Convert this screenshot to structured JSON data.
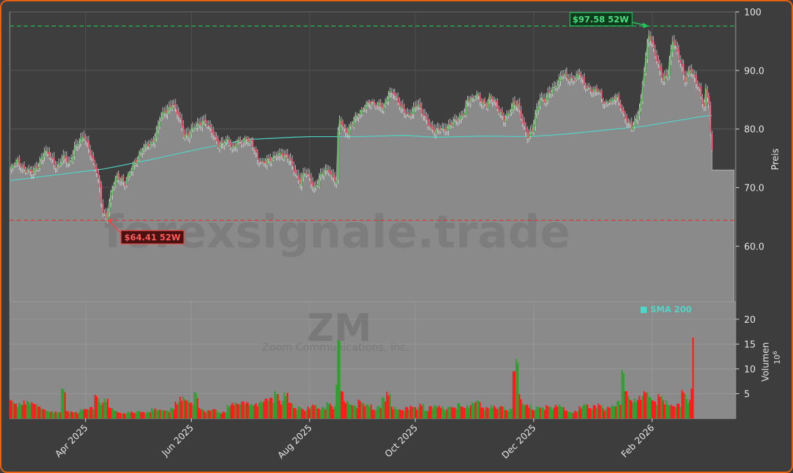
{
  "chart_data": {
    "type": "candlestick",
    "ticker": "ZM",
    "company": "Zoom Communications, Inc.",
    "watermark": "forexsignale.trade",
    "ylabel_price": "Preis",
    "ylabel_volume": "Volumen",
    "volume_exponent_base": "10",
    "volume_exponent_power": "6",
    "price_ylim": [
      50.5,
      100
    ],
    "price_ticks": [
      "100",
      "90.0",
      "80.0",
      "70.0",
      "60.0"
    ],
    "price_tick_values": [
      100,
      90,
      80,
      70,
      60
    ],
    "volume_ylim": [
      0,
      23.5
    ],
    "volume_ticks": [
      "20",
      "15",
      "10",
      "5"
    ],
    "volume_tick_values": [
      20,
      15,
      10,
      5
    ],
    "x_tick_labels": [
      "Apr 2025",
      "Jun 2025",
      "Aug 2025",
      "Oct 2025",
      "Dec 2025",
      "Feb 2026"
    ],
    "high_52w": {
      "label": "$97.58 52W",
      "value": 97.58
    },
    "low_52w": {
      "label": "$64.41 52W",
      "value": 64.41
    },
    "sma_label": "SMA 200",
    "sma_color": "#4fd6c8",
    "up_color": "#2ea02e",
    "down_color": "#ff1a1a",
    "high_line_color": "#22b14c",
    "low_line_color": "#d93636",
    "close_series": [
      [
        0,
        73.0
      ],
      [
        5,
        74.5
      ],
      [
        10,
        73.0
      ],
      [
        14,
        72.5
      ],
      [
        18,
        74.0
      ],
      [
        22,
        76.0
      ],
      [
        26,
        75.2
      ],
      [
        30,
        73.5
      ],
      [
        34,
        75.0
      ],
      [
        38,
        74.3
      ],
      [
        41,
        76.8
      ],
      [
        44,
        77.5
      ],
      [
        47,
        78.9
      ],
      [
        50,
        77.0
      ],
      [
        53,
        73.8
      ],
      [
        55,
        72.5
      ],
      [
        57,
        70.0
      ],
      [
        59,
        66.0
      ],
      [
        61,
        65.0
      ],
      [
        63,
        67.2
      ],
      [
        65,
        69.8
      ],
      [
        68,
        72.1
      ],
      [
        71,
        71.5
      ],
      [
        73,
        70.5
      ],
      [
        75,
        71.8
      ],
      [
        78,
        74.0
      ],
      [
        81,
        75.2
      ],
      [
        84,
        76.5
      ],
      [
        87,
        77.2
      ],
      [
        90,
        77.8
      ],
      [
        93,
        79.5
      ],
      [
        95,
        81.5
      ],
      [
        98,
        83.0
      ],
      [
        101,
        83.8
      ],
      [
        103,
        84.3
      ],
      [
        105,
        83.2
      ],
      [
        108,
        81.5
      ],
      [
        110,
        79.3
      ],
      [
        113,
        79.0
      ],
      [
        116,
        79.8
      ],
      [
        119,
        80.8
      ],
      [
        122,
        81.5
      ],
      [
        124,
        81.0
      ],
      [
        126,
        80.2
      ],
      [
        129,
        79.2
      ],
      [
        132,
        77.5
      ],
      [
        135,
        77.5
      ],
      [
        138,
        77.9
      ],
      [
        141,
        77.0
      ],
      [
        144,
        77.9
      ],
      [
        147,
        77.5
      ],
      [
        150,
        78.5
      ],
      [
        153,
        78.0
      ],
      [
        155,
        76.5
      ],
      [
        157,
        74.5
      ],
      [
        160,
        74.3
      ],
      [
        163,
        75.0
      ],
      [
        166,
        74.6
      ],
      [
        169,
        75.5
      ],
      [
        172,
        75.9
      ],
      [
        175,
        75.4
      ],
      [
        177,
        74.8
      ],
      [
        179,
        73.5
      ],
      [
        181,
        72.5
      ],
      [
        184,
        71.2
      ],
      [
        187,
        72.5
      ],
      [
        190,
        71.5
      ],
      [
        193,
        70.0
      ],
      [
        196,
        71.5
      ],
      [
        199,
        72.7
      ],
      [
        202,
        73.0
      ],
      [
        205,
        71.8
      ],
      [
        207,
        71.0
      ],
      [
        208,
        79.0
      ],
      [
        209,
        81.5
      ],
      [
        211,
        80.2
      ],
      [
        214,
        79.8
      ],
      [
        217,
        81.0
      ],
      [
        219,
        81.8
      ],
      [
        222,
        82.8
      ],
      [
        225,
        84.2
      ],
      [
        228,
        84.5
      ],
      [
        231,
        84.0
      ],
      [
        234,
        84.5
      ],
      [
        237,
        83.6
      ],
      [
        240,
        85.8
      ],
      [
        243,
        86.4
      ],
      [
        246,
        84.8
      ],
      [
        249,
        83.1
      ],
      [
        252,
        82.2
      ],
      [
        255,
        83.2
      ],
      [
        258,
        84.3
      ],
      [
        261,
        82.7
      ],
      [
        264,
        81.7
      ],
      [
        267,
        80.1
      ],
      [
        270,
        79.5
      ],
      [
        273,
        80.1
      ],
      [
        276,
        80.2
      ],
      [
        279,
        80.6
      ],
      [
        282,
        81.3
      ],
      [
        285,
        82.1
      ],
      [
        288,
        83.0
      ],
      [
        290,
        84.8
      ],
      [
        293,
        85.0
      ],
      [
        296,
        86.2
      ],
      [
        299,
        84.6
      ],
      [
        302,
        83.8
      ],
      [
        304,
        85.5
      ],
      [
        307,
        85.2
      ],
      [
        310,
        82.9
      ],
      [
        313,
        81.5
      ],
      [
        316,
        82.8
      ],
      [
        319,
        84.4
      ],
      [
        322,
        83.8
      ],
      [
        325,
        81.2
      ],
      [
        328,
        79.0
      ],
      [
        331,
        79.5
      ],
      [
        333,
        82.0
      ],
      [
        336,
        85.5
      ],
      [
        339,
        85.0
      ],
      [
        342,
        86.0
      ],
      [
        345,
        87.0
      ],
      [
        347,
        88.0
      ],
      [
        350,
        89.5
      ],
      [
        353,
        88.5
      ],
      [
        356,
        88.5
      ],
      [
        359,
        89.1
      ],
      [
        361,
        89.5
      ],
      [
        364,
        87.3
      ],
      [
        367,
        87.0
      ],
      [
        370,
        86.7
      ],
      [
        373,
        86.4
      ],
      [
        375,
        85.0
      ],
      [
        377,
        84.5
      ],
      [
        380,
        85.0
      ],
      [
        382,
        84.7
      ],
      [
        384,
        85.6
      ],
      [
        387,
        84.0
      ],
      [
        390,
        82.0
      ],
      [
        392,
        81.0
      ],
      [
        394,
        80.0
      ],
      [
        397,
        81.8
      ],
      [
        400,
        85.0
      ],
      [
        402,
        90.0
      ],
      [
        405,
        96.0
      ],
      [
        407,
        94.5
      ],
      [
        409,
        93.0
      ],
      [
        411,
        91.0
      ],
      [
        414,
        88.0
      ],
      [
        417,
        89.5
      ],
      [
        420,
        95.5
      ],
      [
        422,
        94.0
      ],
      [
        425,
        91.0
      ],
      [
        428,
        88.5
      ],
      [
        431,
        90.5
      ],
      [
        434,
        88.5
      ],
      [
        437,
        86.5
      ],
      [
        440,
        84.0
      ],
      [
        441,
        87.0
      ],
      [
        443,
        84.5
      ],
      [
        444,
        79.0
      ],
      [
        445,
        76.0
      ]
    ],
    "sma_series": [
      [
        0,
        71.2
      ],
      [
        30,
        72.2
      ],
      [
        60,
        73.2
      ],
      [
        90,
        74.8
      ],
      [
        120,
        76.6
      ],
      [
        150,
        78.2
      ],
      [
        180,
        78.6
      ],
      [
        190,
        78.7
      ],
      [
        220,
        78.7
      ],
      [
        250,
        78.9
      ],
      [
        270,
        78.6
      ],
      [
        300,
        78.8
      ],
      [
        330,
        78.7
      ],
      [
        355,
        79.2
      ],
      [
        380,
        79.9
      ],
      [
        400,
        80.4
      ],
      [
        420,
        81.3
      ],
      [
        440,
        82.2
      ],
      [
        445,
        82.3
      ]
    ],
    "flat_tail": {
      "from_x": 445,
      "to_x": 459,
      "value": 73.0
    },
    "volume_bars": [
      [
        0,
        3.7,
        "d"
      ],
      [
        3,
        3.0,
        "d"
      ],
      [
        6,
        3.1,
        "u"
      ],
      [
        9,
        3.6,
        "d"
      ],
      [
        12,
        3.3,
        "u"
      ],
      [
        15,
        3.0,
        "d"
      ],
      [
        18,
        2.4,
        "d"
      ],
      [
        21,
        1.9,
        "d"
      ],
      [
        24,
        1.5,
        "u"
      ],
      [
        27,
        1.4,
        "u"
      ],
      [
        30,
        1.3,
        "u"
      ],
      [
        33,
        6.0,
        "u"
      ],
      [
        36,
        1.5,
        "d"
      ],
      [
        39,
        1.4,
        "d"
      ],
      [
        42,
        1.3,
        "d"
      ],
      [
        45,
        1.9,
        "u"
      ],
      [
        48,
        1.9,
        "d"
      ],
      [
        51,
        2.3,
        "d"
      ],
      [
        54,
        4.8,
        "d"
      ],
      [
        57,
        3.3,
        "u"
      ],
      [
        60,
        4.0,
        "u"
      ],
      [
        63,
        2.2,
        "d"
      ],
      [
        66,
        1.6,
        "u"
      ],
      [
        69,
        1.2,
        "d"
      ],
      [
        72,
        1.1,
        "d"
      ],
      [
        75,
        1.4,
        "u"
      ],
      [
        78,
        1.2,
        "d"
      ],
      [
        81,
        1.5,
        "u"
      ],
      [
        84,
        1.3,
        "d"
      ],
      [
        87,
        1.4,
        "u"
      ],
      [
        90,
        2.1,
        "u"
      ],
      [
        93,
        1.8,
        "u"
      ],
      [
        96,
        1.7,
        "u"
      ],
      [
        99,
        1.6,
        "u"
      ],
      [
        102,
        2.2,
        "u"
      ],
      [
        105,
        3.4,
        "d"
      ],
      [
        108,
        4.4,
        "d"
      ],
      [
        111,
        3.8,
        "d"
      ],
      [
        114,
        3.2,
        "d"
      ],
      [
        117,
        5.3,
        "u"
      ],
      [
        120,
        2.1,
        "d"
      ],
      [
        123,
        1.6,
        "d"
      ],
      [
        126,
        1.7,
        "d"
      ],
      [
        129,
        1.9,
        "d"
      ],
      [
        132,
        1.2,
        "u"
      ],
      [
        135,
        1.4,
        "d"
      ],
      [
        138,
        2.8,
        "u"
      ],
      [
        141,
        3.2,
        "d"
      ],
      [
        144,
        3.0,
        "d"
      ],
      [
        147,
        3.4,
        "d"
      ],
      [
        150,
        3.3,
        "d"
      ],
      [
        153,
        3.0,
        "u"
      ],
      [
        156,
        3.1,
        "d"
      ],
      [
        159,
        3.5,
        "u"
      ],
      [
        162,
        4.0,
        "d"
      ],
      [
        165,
        4.2,
        "d"
      ],
      [
        168,
        5.5,
        "u"
      ],
      [
        171,
        3.6,
        "d"
      ],
      [
        174,
        5.2,
        "u"
      ],
      [
        177,
        3.2,
        "d"
      ],
      [
        180,
        2.1,
        "d"
      ],
      [
        183,
        2.4,
        "u"
      ],
      [
        186,
        1.8,
        "d"
      ],
      [
        189,
        2.4,
        "d"
      ],
      [
        192,
        2.8,
        "d"
      ],
      [
        195,
        2.0,
        "d"
      ],
      [
        198,
        2.3,
        "u"
      ],
      [
        201,
        3.3,
        "u"
      ],
      [
        204,
        2.5,
        "d"
      ],
      [
        207,
        6.8,
        "u"
      ],
      [
        208,
        15.8,
        "u"
      ],
      [
        210,
        5.5,
        "d"
      ],
      [
        212,
        3.5,
        "d"
      ],
      [
        215,
        2.9,
        "u"
      ],
      [
        218,
        2.6,
        "u"
      ],
      [
        221,
        3.8,
        "d"
      ],
      [
        224,
        3.0,
        "d"
      ],
      [
        227,
        2.8,
        "u"
      ],
      [
        230,
        1.8,
        "d"
      ],
      [
        233,
        2.5,
        "u"
      ],
      [
        236,
        4.3,
        "u"
      ],
      [
        239,
        5.4,
        "d"
      ],
      [
        242,
        2.4,
        "d"
      ],
      [
        245,
        1.9,
        "u"
      ],
      [
        248,
        1.7,
        "d"
      ],
      [
        251,
        2.3,
        "d"
      ],
      [
        254,
        2.6,
        "d"
      ],
      [
        257,
        2.3,
        "d"
      ],
      [
        260,
        3.0,
        "d"
      ],
      [
        263,
        1.6,
        "u"
      ],
      [
        266,
        2.5,
        "d"
      ],
      [
        269,
        2.7,
        "u"
      ],
      [
        272,
        2.6,
        "d"
      ],
      [
        275,
        1.9,
        "u"
      ],
      [
        278,
        2.4,
        "u"
      ],
      [
        281,
        2.2,
        "d"
      ],
      [
        284,
        3.1,
        "u"
      ],
      [
        287,
        2.4,
        "d"
      ],
      [
        290,
        2.7,
        "u"
      ],
      [
        293,
        3.3,
        "u"
      ],
      [
        296,
        3.6,
        "u"
      ],
      [
        299,
        2.2,
        "d"
      ],
      [
        302,
        2.3,
        "d"
      ],
      [
        305,
        2.7,
        "u"
      ],
      [
        308,
        2.2,
        "d"
      ],
      [
        311,
        2.5,
        "d"
      ],
      [
        314,
        1.7,
        "d"
      ],
      [
        317,
        2.0,
        "u"
      ],
      [
        319,
        9.5,
        "d"
      ],
      [
        321,
        12.0,
        "u"
      ],
      [
        323,
        4.9,
        "d"
      ],
      [
        325,
        3.0,
        "u"
      ],
      [
        328,
        2.8,
        "d"
      ],
      [
        331,
        1.8,
        "d"
      ],
      [
        334,
        2.4,
        "u"
      ],
      [
        337,
        2.2,
        "u"
      ],
      [
        340,
        2.7,
        "d"
      ],
      [
        343,
        2.3,
        "u"
      ],
      [
        346,
        2.8,
        "d"
      ],
      [
        349,
        2.4,
        "u"
      ],
      [
        352,
        1.6,
        "d"
      ],
      [
        355,
        1.3,
        "u"
      ],
      [
        358,
        1.6,
        "d"
      ],
      [
        361,
        2.5,
        "d"
      ],
      [
        364,
        2.9,
        "u"
      ],
      [
        367,
        2.1,
        "d"
      ],
      [
        370,
        2.7,
        "d"
      ],
      [
        373,
        3.0,
        "d"
      ],
      [
        376,
        2.0,
        "d"
      ],
      [
        379,
        2.4,
        "d"
      ],
      [
        382,
        2.6,
        "u"
      ],
      [
        385,
        3.5,
        "u"
      ],
      [
        388,
        9.8,
        "u"
      ],
      [
        390,
        5.5,
        "d"
      ],
      [
        393,
        3.8,
        "d"
      ],
      [
        396,
        4.0,
        "u"
      ],
      [
        399,
        4.6,
        "d"
      ],
      [
        402,
        5.5,
        "d"
      ],
      [
        405,
        4.3,
        "u"
      ],
      [
        408,
        3.5,
        "d"
      ],
      [
        411,
        4.9,
        "d"
      ],
      [
        414,
        3.7,
        "d"
      ],
      [
        417,
        2.8,
        "u"
      ],
      [
        420,
        2.5,
        "d"
      ],
      [
        423,
        3.0,
        "d"
      ],
      [
        426,
        5.7,
        "d"
      ],
      [
        429,
        3.9,
        "u"
      ],
      [
        432,
        6.0,
        "d"
      ],
      [
        433,
        16.3,
        "d"
      ]
    ]
  }
}
